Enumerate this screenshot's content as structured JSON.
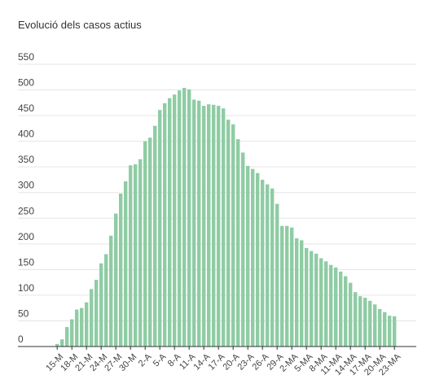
{
  "chart_data": {
    "type": "bar",
    "title": "Evolució dels casos actius",
    "xlabel": "",
    "ylabel": "",
    "ylim": [
      0,
      550
    ],
    "yticks": [
      0,
      50,
      100,
      150,
      200,
      250,
      300,
      350,
      400,
      450,
      500,
      550
    ],
    "grid": true,
    "legend": "none",
    "colors": {
      "bar": "#8fcca4",
      "grid": "#e5e5e5",
      "axis": "#333333",
      "text": "#444444"
    },
    "tick_labels": [
      "15-M",
      "18-M",
      "21-M",
      "24-M",
      "27-M",
      "30-M",
      "2-A",
      "5-A",
      "8-A",
      "11-A",
      "14-A",
      "17-A",
      "20-A",
      "23-A",
      "26-A",
      "29-A",
      "2-MA",
      "5-MA",
      "8-MA",
      "11-MA",
      "14-MA",
      "17-MA",
      "20-MA",
      "23-MA"
    ],
    "values": [
      5,
      14,
      38,
      53,
      72,
      75,
      86,
      112,
      130,
      162,
      180,
      216,
      259,
      298,
      322,
      353,
      355,
      365,
      400,
      407,
      430,
      461,
      474,
      484,
      491,
      499,
      504,
      501,
      481,
      479,
      469,
      472,
      471,
      469,
      464,
      442,
      433,
      404,
      378,
      352,
      346,
      338,
      325,
      316,
      308,
      278,
      235,
      235,
      232,
      211,
      207,
      192,
      186,
      181,
      172,
      166,
      159,
      154,
      146,
      137,
      124,
      106,
      98,
      95,
      89,
      82,
      73,
      67,
      60,
      59
    ]
  }
}
